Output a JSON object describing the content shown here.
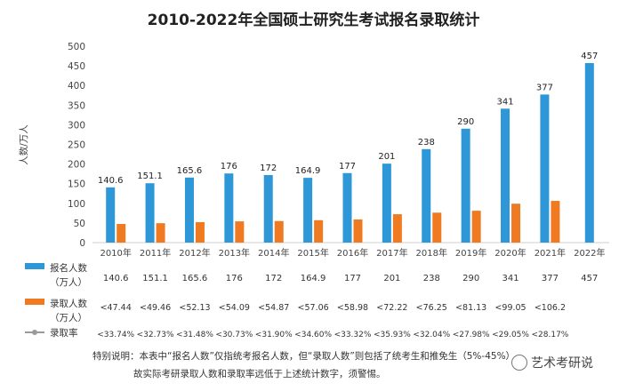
{
  "title": "2010-2022年全国硕士研究生考试报名录取统计",
  "colors": {
    "applicants": "#2e97d8",
    "admitted": "#f07a22",
    "rate": "#9a9a9a"
  },
  "chart_data": {
    "type": "bar",
    "title": "2010-2022年全国硕士研究生考试报名录取统计",
    "ylabel": "人数/万人",
    "ylim": [
      0,
      500
    ],
    "yticks": [
      "0",
      "50",
      "100",
      "150",
      "200",
      "250",
      "300",
      "350",
      "400",
      "450",
      "500"
    ],
    "categories": [
      "2010年",
      "2011年",
      "2012年",
      "2013年",
      "2014年",
      "2015年",
      "2016年",
      "2017年",
      "2018年",
      "2019年",
      "2020年",
      "2021年",
      "2022年"
    ],
    "series": [
      {
        "name": "报名人数（万人）",
        "values": [
          140.6,
          151.1,
          165.6,
          176,
          172,
          164.9,
          177,
          201,
          238,
          290,
          341,
          377,
          457
        ],
        "labels": [
          "140.6",
          "151.1",
          "165.6",
          "176",
          "172",
          "164.9",
          "177",
          "201",
          "238",
          "290",
          "341",
          "377",
          "457"
        ]
      },
      {
        "name": "录取人数（万人）",
        "values": [
          47.44,
          49.46,
          52.13,
          54.09,
          54.87,
          57.06,
          58.98,
          72.22,
          76.25,
          81.13,
          99.05,
          106.2,
          null
        ],
        "labels": [
          "47.44",
          "49.46",
          "52.13",
          "54.09",
          "54.87",
          "57.06",
          "58.98",
          "72.22",
          "76.25",
          "81.13",
          "99.05",
          "106.2",
          ""
        ]
      },
      {
        "name": "录取率",
        "values": [
          33.74,
          32.73,
          31.48,
          30.73,
          31.9,
          34.6,
          33.32,
          35.93,
          32.04,
          27.98,
          29.05,
          28.17,
          null
        ],
        "labels": [
          "33.74%",
          "32.73%",
          "31.48%",
          "30.73%",
          "31.90%",
          "34.60%",
          "33.32%",
          "35.93%",
          "32.04%",
          "27.98%",
          "29.05%",
          "28.17%",
          ""
        ]
      }
    ],
    "table": {
      "row_labels": [
        [
          "报名人数",
          "（万人）"
        ],
        [
          "录取人数",
          "（万人）"
        ],
        [
          "录取率"
        ]
      ],
      "admitted_prefix": "<",
      "rate_prefix": "<"
    }
  },
  "note": {
    "line1": "特别说明：本表中“报名人数”仅指统考报名人数，但“录取人数”则包括了统考生和推免生（5%-45%）",
    "line2": "故实际考研录取人数和录取率远低于上述统计数字，须警惕。"
  },
  "watermark": "艺术考研说"
}
